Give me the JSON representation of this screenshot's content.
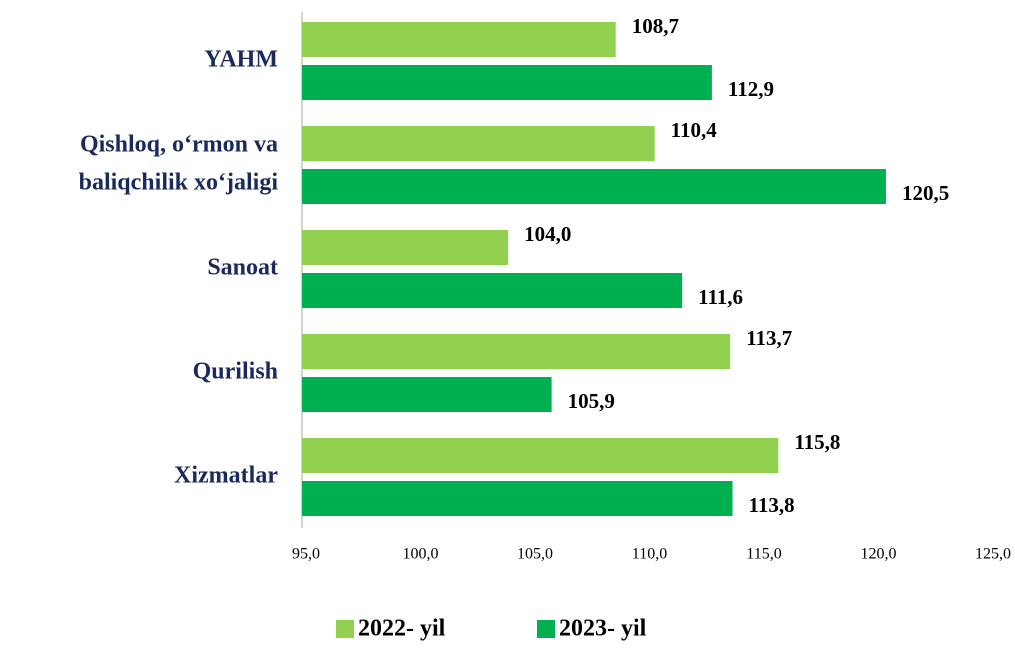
{
  "chart_data": {
    "type": "barh",
    "categories": [
      "YAHM",
      [
        "Qishloq, o‘rmon va",
        "baliqchilik xo‘jaligi"
      ],
      "Sanoat",
      "Qurilish",
      "Xizmatlar"
    ],
    "series": [
      {
        "name": "2022- yil",
        "color": "#92d050",
        "values": [
          108.7,
          110.4,
          104.0,
          113.7,
          115.8
        ],
        "value_labels": [
          "108,7",
          "110,4",
          "104,0",
          "113,7",
          "115,8"
        ]
      },
      {
        "name": "2023- yil",
        "color": "#00b050",
        "values": [
          112.9,
          120.5,
          111.6,
          105.9,
          113.8
        ],
        "value_labels": [
          "112,9",
          "120,5",
          "111,6",
          "105,9",
          "113,8"
        ]
      }
    ],
    "xlim": [
      95,
      125
    ],
    "xticks": [
      {
        "value": 95,
        "label": "95,0"
      },
      {
        "value": 100,
        "label": "100,0"
      },
      {
        "value": 105,
        "label": "105,0"
      },
      {
        "value": 110,
        "label": "110,0"
      },
      {
        "value": 115,
        "label": "115,0"
      },
      {
        "value": 120,
        "label": "120,0"
      },
      {
        "value": 125,
        "label": "125,0"
      }
    ],
    "legend": "bottom"
  }
}
